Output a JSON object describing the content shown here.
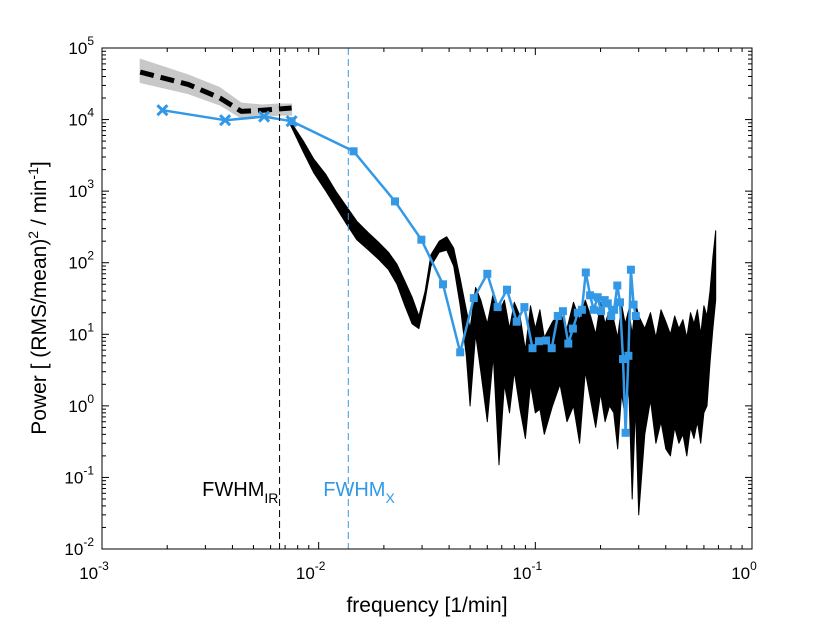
{
  "chart_data": {
    "type": "line",
    "xscale": "log",
    "yscale": "log",
    "xlim": [
      0.001,
      1
    ],
    "ylim": [
      0.01,
      100000
    ],
    "grid": false,
    "xlabel": "frequency [1/min]",
    "ylabel": {
      "part1": "Power [ (RMS/mean)",
      "sup1": "2",
      "part2": " / min",
      "sup2": "-1",
      "part3": "]"
    },
    "x_ticks": [
      {
        "base": "10",
        "exp": "-3",
        "value": 0.001
      },
      {
        "base": "10",
        "exp": "-2",
        "value": 0.01
      },
      {
        "base": "10",
        "exp": "-1",
        "value": 0.1
      },
      {
        "base": "10",
        "exp": "0",
        "value": 1
      }
    ],
    "y_ticks": [
      {
        "base": "10",
        "exp": "-2",
        "value": 0.01
      },
      {
        "base": "10",
        "exp": "-1",
        "value": 0.1
      },
      {
        "base": "10",
        "exp": "0",
        "value": 1
      },
      {
        "base": "10",
        "exp": "1",
        "value": 10
      },
      {
        "base": "10",
        "exp": "2",
        "value": 100
      },
      {
        "base": "10",
        "exp": "3",
        "value": 1000
      },
      {
        "base": "10",
        "exp": "4",
        "value": 10000
      },
      {
        "base": "10",
        "exp": "5",
        "value": 100000
      }
    ],
    "colors": {
      "ir": "#000000",
      "xray": "#3399e6",
      "band": "#c8c8c8"
    },
    "vlines": [
      {
        "name": "FWHM_IR",
        "x": 0.0066,
        "color": "#000000"
      },
      {
        "name": "FWHM_X",
        "x": 0.0137,
        "color": "#3399e6"
      }
    ],
    "annotations": [
      {
        "name": "fwhm-ir",
        "text": "FWHM",
        "sub": "IR",
        "x": 0.0029,
        "y": 0.055,
        "color": "#000000"
      },
      {
        "name": "fwhm-x",
        "text": "FWHM",
        "sub": "X",
        "x": 0.0105,
        "y": 0.055,
        "color": "#3399e6"
      }
    ],
    "series": [
      {
        "name": "ir-low-frequency-band",
        "style": "band",
        "color": "#c8c8c8",
        "x": [
          0.0015,
          0.0025,
          0.0035,
          0.0044,
          0.0055,
          0.0065,
          0.0075
        ],
        "y_upper": [
          70000,
          42000,
          28000,
          17000,
          16000,
          16500,
          16500
        ],
        "y_lower": [
          33000,
          23000,
          16000,
          10500,
          11000,
          11500,
          11500
        ]
      },
      {
        "name": "ir-low-frequency-mean",
        "style": "dashed",
        "color": "#000000",
        "x": [
          0.0015,
          0.0025,
          0.0035,
          0.0044,
          0.0055,
          0.0065,
          0.0075
        ],
        "y": [
          46000,
          31000,
          20000,
          13000,
          13500,
          14000,
          14500
        ]
      },
      {
        "name": "ir-power-spectrum-band",
        "style": "band",
        "color": "#000000",
        "x": [
          0.0074,
          0.0085,
          0.0095,
          0.0108,
          0.012,
          0.0135,
          0.015,
          0.017,
          0.019,
          0.021,
          0.023,
          0.025,
          0.027,
          0.029,
          0.031,
          0.033,
          0.036,
          0.039,
          0.042,
          0.045,
          0.048,
          0.05,
          0.053,
          0.056,
          0.06,
          0.064,
          0.068,
          0.072,
          0.076,
          0.08,
          0.085,
          0.09,
          0.095,
          0.1,
          0.105,
          0.11,
          0.12,
          0.13,
          0.14,
          0.15,
          0.16,
          0.17,
          0.18,
          0.19,
          0.2,
          0.21,
          0.22,
          0.23,
          0.24,
          0.25,
          0.26,
          0.27,
          0.28,
          0.29,
          0.3,
          0.32,
          0.34,
          0.36,
          0.38,
          0.4,
          0.42,
          0.44,
          0.46,
          0.48,
          0.5,
          0.52,
          0.54,
          0.56,
          0.58,
          0.6,
          0.62,
          0.64,
          0.66,
          0.68
        ],
        "y_upper": [
          9500,
          5000,
          2800,
          1700,
          1000,
          600,
          380,
          260,
          190,
          140,
          95,
          55,
          33,
          18,
          40,
          130,
          200,
          230,
          160,
          60,
          22,
          12,
          45,
          30,
          14,
          38,
          20,
          30,
          12,
          28,
          18,
          6,
          25,
          12,
          22,
          9,
          15,
          20,
          12,
          28,
          16,
          30,
          18,
          10,
          28,
          14,
          22,
          16,
          9,
          26,
          14,
          22,
          10,
          28,
          18,
          12,
          20,
          9,
          22,
          15,
          10,
          18,
          12,
          16,
          9,
          20,
          14,
          22,
          10,
          25,
          18,
          40,
          120,
          280
        ],
        "y_lower": [
          8500,
          3500,
          1800,
          1000,
          600,
          340,
          210,
          150,
          110,
          80,
          50,
          25,
          14,
          12,
          30,
          90,
          140,
          150,
          90,
          25,
          5,
          1,
          10,
          3,
          0.6,
          5,
          0.15,
          2,
          0.8,
          3,
          0.9,
          0.35,
          2,
          0.8,
          0.9,
          0.4,
          1,
          2,
          0.6,
          1,
          0.3,
          3,
          1.2,
          0.5,
          1.5,
          0.6,
          1,
          0.8,
          0.25,
          1.5,
          0.7,
          1.8,
          0.05,
          1,
          0.03,
          0.4,
          1.2,
          0.3,
          0.6,
          0.25,
          0.2,
          0.5,
          0.3,
          0.4,
          0.2,
          0.5,
          0.35,
          0.6,
          0.3,
          0.8,
          1,
          4,
          12,
          30
        ]
      },
      {
        "name": "xray-low-frequency",
        "style": "line-x-markers",
        "color": "#3399e6",
        "x": [
          0.0019,
          0.0037,
          0.0056,
          0.0075
        ],
        "y": [
          13500,
          9800,
          11000,
          9500
        ]
      },
      {
        "name": "xray-power-spectrum",
        "style": "line-square-markers",
        "color": "#3399e6",
        "x": [
          0.0075,
          0.0145,
          0.0225,
          0.0298,
          0.0375,
          0.045,
          0.052,
          0.06,
          0.067,
          0.074,
          0.082,
          0.089,
          0.097,
          0.104,
          0.112,
          0.119,
          0.127,
          0.134,
          0.142,
          0.149,
          0.157,
          0.164,
          0.171,
          0.179,
          0.186,
          0.194,
          0.201,
          0.209,
          0.216,
          0.224,
          0.231,
          0.239,
          0.246,
          0.254,
          0.261,
          0.269,
          0.276,
          0.284,
          0.291
        ],
        "y": [
          9500,
          3600,
          720,
          210,
          50,
          5.6,
          32,
          70,
          24,
          42,
          15,
          24,
          6.4,
          8,
          8.2,
          6.4,
          18,
          21,
          7.4,
          12,
          20,
          22,
          73,
          35,
          22,
          33,
          21,
          30,
          27,
          18,
          22,
          48,
          28,
          4.5,
          0.42,
          5,
          80,
          26,
          18
        ]
      }
    ]
  }
}
